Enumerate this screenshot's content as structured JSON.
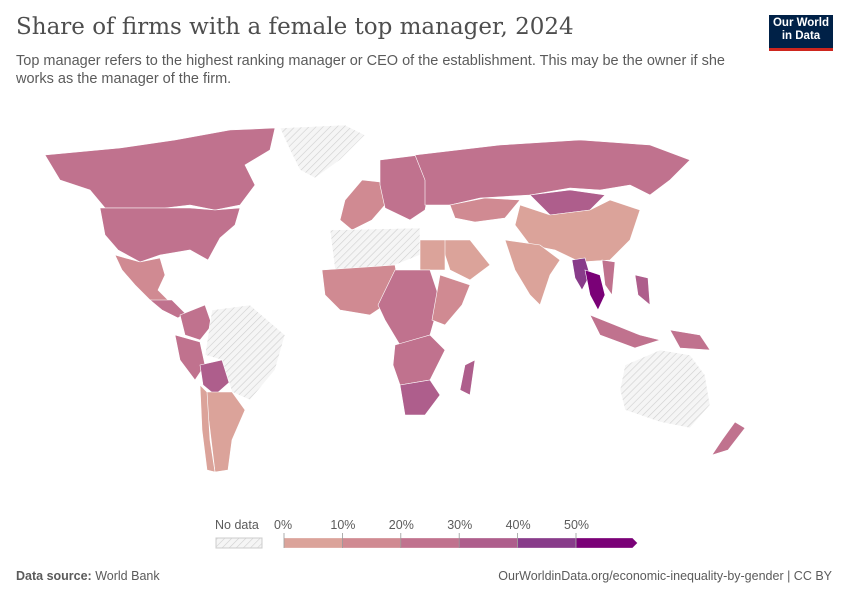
{
  "header": {
    "title": "Share of firms with a female top manager, 2024",
    "subtitle": "Top manager refers to the highest ranking manager or CEO of the establishment. This may be the owner if she works as the manager of the firm.",
    "logo_text": "Our World in Data"
  },
  "chart_data": {
    "type": "choropleth",
    "title": "Share of firms with a female top manager, 2024",
    "legend": {
      "no_data_label": "No data",
      "bins": [
        {
          "label": "0%",
          "from": 0,
          "to": 10,
          "color": "#dba39a"
        },
        {
          "label": "10%",
          "from": 10,
          "to": 20,
          "color": "#d08a92"
        },
        {
          "label": "20%",
          "from": 20,
          "to": 30,
          "color": "#c0728e"
        },
        {
          "label": "30%",
          "from": 30,
          "to": 40,
          "color": "#ae5e8c"
        },
        {
          "label": "40%",
          "from": 40,
          "to": 50,
          "color": "#883c8a"
        },
        {
          "label": "50%",
          "from": 50,
          "to": null,
          "color": "#7a0177"
        }
      ],
      "placement": "bottom-center"
    },
    "regions": [
      {
        "name": "Canada",
        "value": 25
      },
      {
        "name": "United States",
        "value": 25
      },
      {
        "name": "Greenland",
        "value": null
      },
      {
        "name": "Mexico",
        "value": 15
      },
      {
        "name": "Central America",
        "value": 25
      },
      {
        "name": "Colombia",
        "value": 25
      },
      {
        "name": "Peru",
        "value": 25
      },
      {
        "name": "Bolivia",
        "value": 30
      },
      {
        "name": "Brazil",
        "value": null
      },
      {
        "name": "Argentina",
        "value": 8
      },
      {
        "name": "Chile",
        "value": 8
      },
      {
        "name": "Western Europe",
        "value": 15
      },
      {
        "name": "Eastern Europe",
        "value": 25
      },
      {
        "name": "Russia",
        "value": 25
      },
      {
        "name": "Kazakhstan",
        "value": 15
      },
      {
        "name": "Mongolia",
        "value": 35
      },
      {
        "name": "China",
        "value": 8
      },
      {
        "name": "India",
        "value": 8
      },
      {
        "name": "Saudi Arabia",
        "value": 5
      },
      {
        "name": "North Africa",
        "value": null
      },
      {
        "name": "Egypt",
        "value": 8
      },
      {
        "name": "West Africa",
        "value": 15
      },
      {
        "name": "Central Africa",
        "value": 20
      },
      {
        "name": "East Africa",
        "value": 15
      },
      {
        "name": "Southern Africa",
        "value": 25
      },
      {
        "name": "South Africa",
        "value": 35
      },
      {
        "name": "Madagascar",
        "value": 30
      },
      {
        "name": "Myanmar",
        "value": 40
      },
      {
        "name": "Thailand",
        "value": 60
      },
      {
        "name": "Vietnam",
        "value": 25
      },
      {
        "name": "Philippines",
        "value": 35
      },
      {
        "name": "Indonesia",
        "value": 25
      },
      {
        "name": "Papua New Guinea",
        "value": 25
      },
      {
        "name": "Australia",
        "value": null
      },
      {
        "name": "New Zealand",
        "value": 25
      }
    ]
  },
  "footer": {
    "source_label": "Data source:",
    "source": "World Bank",
    "url": "OurWorldinData.org/economic-inequality-by-gender | CC BY"
  }
}
